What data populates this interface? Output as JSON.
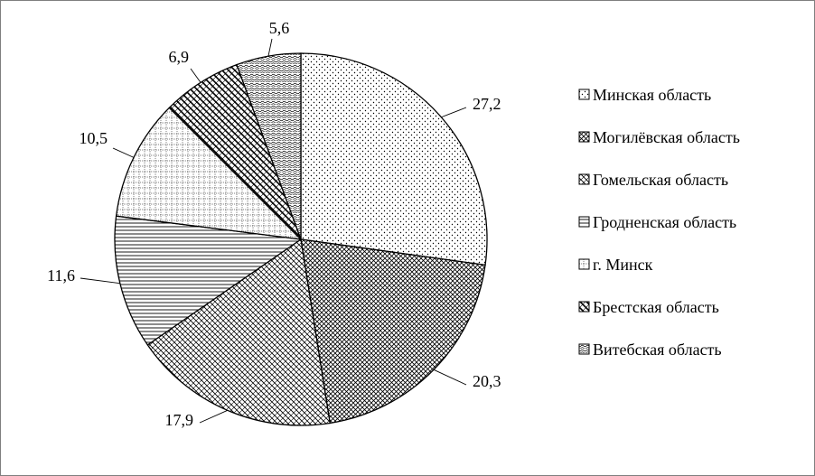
{
  "chart_data": {
    "type": "pie",
    "categories": [
      "Минская область",
      "Могилёвская область",
      "Гомельская область",
      "Гродненская область",
      "г. Минск",
      "Брестская область",
      "Витебская область"
    ],
    "values": [
      27.2,
      20.3,
      17.9,
      11.6,
      10.5,
      6.9,
      5.6
    ],
    "value_labels": [
      "27,2",
      "20,3",
      "17,9",
      "11,6",
      "10,5",
      "6,9",
      "5,6"
    ],
    "legend_entries": [
      "Минская область",
      "Могилёвская область",
      "Гомельская область",
      "Гродненская область",
      "г. Минск",
      "Брестская область",
      "Витебская область"
    ],
    "legend_position": "right",
    "start_angle": "top, clockwise",
    "title": ""
  }
}
